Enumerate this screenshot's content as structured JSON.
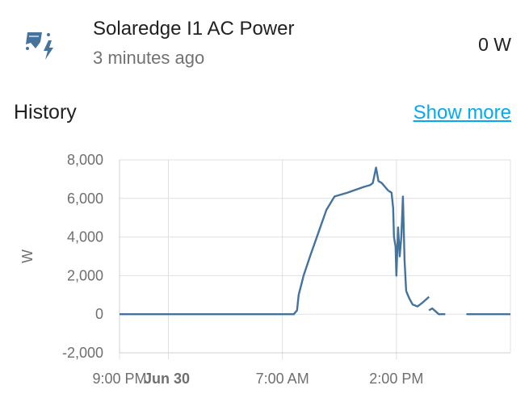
{
  "entity": {
    "name": "Solaredge I1 AC Power",
    "last_changed": "3 minutes ago",
    "state": "0 W",
    "icon": "solar-power-icon",
    "icon_color": "#44739e"
  },
  "history": {
    "title": "History",
    "show_more": "Show more",
    "link_color": "#03a9f4"
  },
  "chart_data": {
    "type": "line",
    "ylabel": "W",
    "ylim": [
      -2000,
      8000
    ],
    "y_ticks": [
      "8,000",
      "6,000",
      "4,000",
      "2,000",
      "0",
      "-2,000"
    ],
    "y_tick_values": [
      8000,
      6000,
      4000,
      2000,
      0,
      -2000
    ],
    "x_tick_labels": [
      "9:00 PM",
      "Jun 30",
      "7:00 AM",
      "2:00 PM"
    ],
    "x_tick_hours": [
      0,
      3,
      10,
      17
    ],
    "xlim_hours": [
      0,
      24
    ],
    "grid": true,
    "series": [
      {
        "color": "#44739e",
        "segments": [
          [
            [
              0,
              0
            ],
            [
              10.7,
              0
            ],
            [
              10.9,
              200
            ],
            [
              11.0,
              1000
            ],
            [
              11.3,
              2000
            ],
            [
              11.7,
              3000
            ],
            [
              12.2,
              4200
            ],
            [
              12.7,
              5400
            ],
            [
              13.2,
              6100
            ],
            [
              14.0,
              6300
            ],
            [
              15.0,
              6600
            ],
            [
              15.4,
              6700
            ],
            [
              15.55,
              6800
            ],
            [
              15.75,
              7600
            ],
            [
              15.9,
              6900
            ],
            [
              16.1,
              6800
            ],
            [
              16.3,
              6600
            ],
            [
              16.5,
              6400
            ]
          ],
          [
            [
              16.5,
              6400
            ],
            [
              16.7,
              6300
            ],
            [
              16.8,
              5500
            ],
            [
              16.85,
              4000
            ],
            [
              16.95,
              3500
            ],
            [
              17.0,
              2000
            ],
            [
              17.1,
              4500
            ],
            [
              17.2,
              3000
            ],
            [
              17.3,
              4000
            ],
            [
              17.4,
              6100
            ],
            [
              17.5,
              2800
            ],
            [
              17.6,
              1200
            ]
          ],
          [
            [
              17.6,
              1200
            ],
            [
              17.8,
              800
            ],
            [
              18.0,
              500
            ],
            [
              18.3,
              400
            ],
            [
              18.6,
              600
            ],
            [
              19.0,
              900
            ]
          ],
          [
            [
              19.0,
              200
            ],
            [
              19.2,
              300
            ],
            [
              19.6,
              0
            ],
            [
              20.0,
              0
            ]
          ],
          [
            [
              21.3,
              0
            ],
            [
              24.0,
              0
            ]
          ]
        ]
      }
    ]
  }
}
